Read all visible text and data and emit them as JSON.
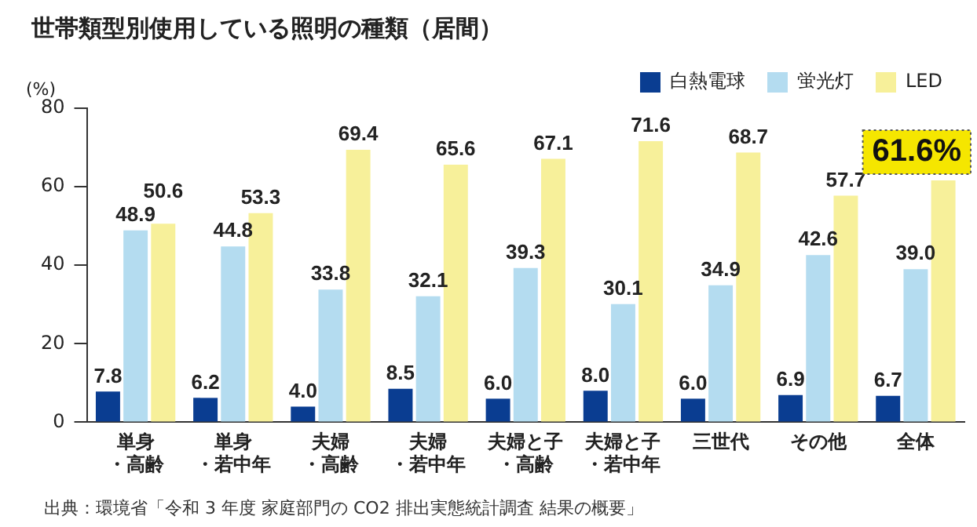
{
  "chart_data": {
    "type": "bar",
    "title": "世帯類型別使用している照明の種類（居間）",
    "ylabel": "(%)",
    "categories": [
      "単身・高齢",
      "単身・若中年",
      "夫婦・高齢",
      "夫婦・若中年",
      "夫婦と子・高齢",
      "夫婦と子・若中年",
      "三世代",
      "その他",
      "全体"
    ],
    "series": [
      {
        "name": "白熱電球",
        "color": "#0a3d91",
        "values": [
          7.8,
          6.2,
          4.0,
          8.5,
          6.0,
          8.0,
          6.0,
          6.9,
          6.7
        ],
        "value_labels": [
          "7.8",
          "6.2",
          "4.0",
          "8.5",
          "6.0",
          "8.0",
          "6.0",
          "6.9",
          "6.7"
        ]
      },
      {
        "name": "蛍光灯",
        "color": "#b4dcf0",
        "values": [
          48.9,
          44.8,
          33.8,
          32.1,
          39.3,
          30.1,
          34.9,
          42.6,
          39.0
        ],
        "value_labels": [
          "48.9",
          "44.8",
          "33.8",
          "32.1",
          "39.3",
          "30.1",
          "34.9",
          "42.6",
          "39.0"
        ]
      },
      {
        "name": "LED",
        "color": "#f7f09a",
        "values": [
          50.6,
          53.3,
          69.4,
          65.6,
          67.1,
          71.6,
          68.7,
          57.7,
          61.6
        ],
        "value_labels": [
          "50.6",
          "53.3",
          "69.4",
          "65.6",
          "67.1",
          "71.6",
          "68.7",
          "57.7",
          "61.6%"
        ]
      }
    ],
    "ylim": [
      0,
      80
    ],
    "yticks": [
      0,
      20,
      40,
      60,
      80
    ],
    "grid": false,
    "legend": "top right",
    "annotations": [
      "出典：環境省「令和 3 年度 家庭部門の CO2 排出実態統計調査 結果の概要」"
    ]
  }
}
